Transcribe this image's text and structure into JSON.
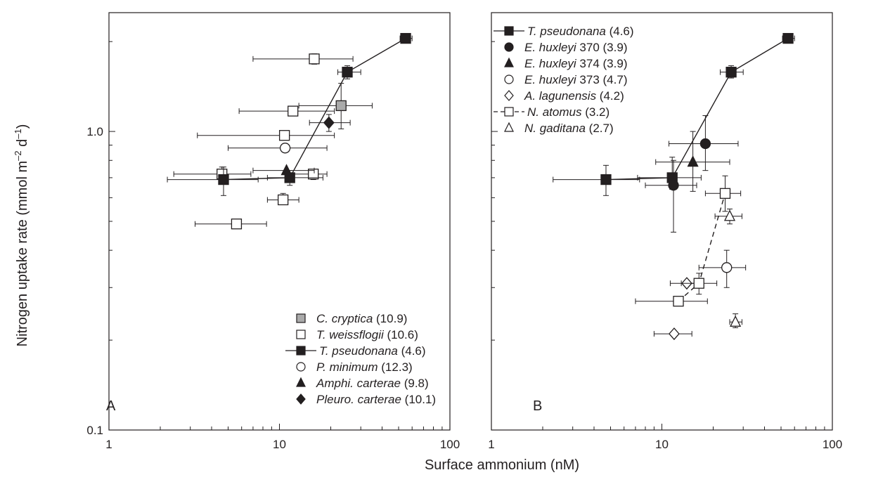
{
  "figure": {
    "ylabel_main": "Nitrogen uptake rate (mmol m",
    "ylabel_sup1": "–2",
    "ylabel_mid": " d",
    "ylabel_sup2": "–1",
    "ylabel_end": ")",
    "xlabel": "Surface ammonium  (nM)"
  },
  "chart_data": [
    {
      "type": "scatter",
      "panel_label": "A",
      "xscale": "log",
      "yscale": "log",
      "xlim": [
        1,
        100
      ],
      "ylim": [
        0.1,
        2.5
      ],
      "xticks": [
        1,
        10,
        100
      ],
      "xtick_labels": [
        "1",
        "10",
        "100"
      ],
      "yticks": [
        0.1,
        1.0
      ],
      "ytick_labels": [
        "0.1",
        "1.0"
      ],
      "legend_position": "bottom-right",
      "series": [
        {
          "name": "C. cryptica",
          "value_label": "(10.9)",
          "marker": "square",
          "fill": "#aaaaaa",
          "line": "none",
          "points": [
            {
              "x": 23,
              "y": 1.22,
              "xerr": [
                13,
                35
              ],
              "yerr": [
                1.02,
                1.45
              ]
            }
          ]
        },
        {
          "name": "T. weissflogii",
          "value_label": "(10.6)",
          "marker": "square",
          "fill": "#ffffff",
          "line": "none",
          "points": [
            {
              "x": 16,
              "y": 1.75,
              "xerr": [
                7,
                27
              ],
              "yerr": [
                1.68,
                1.82
              ]
            },
            {
              "x": 12,
              "y": 1.17,
              "xerr": [
                5.8,
                21
              ]
            },
            {
              "x": 10.7,
              "y": 0.97,
              "xerr": [
                3.3,
                21
              ]
            },
            {
              "x": 4.6,
              "y": 0.72,
              "xerr": [
                2.4,
                6.8
              ],
              "yerr": [
                0.69,
                0.76
              ]
            },
            {
              "x": 15.8,
              "y": 0.72,
              "xerr": [
                11,
                19
              ],
              "yerr": [
                0.69,
                0.74
              ]
            },
            {
              "x": 10.5,
              "y": 0.59,
              "xerr": [
                8.5,
                13
              ],
              "yerr": [
                0.57,
                0.62
              ]
            },
            {
              "x": 5.6,
              "y": 0.49,
              "xerr": [
                3.2,
                8.4
              ]
            }
          ]
        },
        {
          "name": "T. pseudonana",
          "value_label": "(4.6)",
          "marker": "square",
          "fill": "#231f20",
          "line": "solid",
          "points": [
            {
              "x": 4.7,
              "y": 0.69,
              "xerr": [
                2.2,
                7.5
              ],
              "yerr": [
                0.61,
                0.76
              ]
            },
            {
              "x": 11.5,
              "y": 0.7,
              "xerr": [
                8.5,
                18
              ],
              "yerr": [
                0.66,
                0.74
              ]
            },
            {
              "x": 25,
              "y": 1.58,
              "xerr": [
                22,
                30
              ],
              "yerr": [
                1.5,
                1.66
              ]
            },
            {
              "x": 55,
              "y": 2.05,
              "xerr": [
                51,
                60
              ],
              "yerr": [
                1.99,
                2.12
              ]
            }
          ]
        },
        {
          "name": "P. minimum",
          "value_label": "(12.3)",
          "marker": "circle",
          "fill": "#ffffff",
          "line": "none",
          "points": [
            {
              "x": 10.8,
              "y": 0.88,
              "xerr": [
                5,
                19
              ]
            }
          ]
        },
        {
          "name": "Amphi. carterae",
          "value_label": "(9.8)",
          "marker": "triangle",
          "fill": "#231f20",
          "line": "none",
          "points": [
            {
              "x": 11,
              "y": 0.74,
              "xerr": [
                7,
                16
              ]
            }
          ]
        },
        {
          "name": "Pleuro. carterae",
          "value_label": "(10.1)",
          "marker": "diamond",
          "fill": "#231f20",
          "line": "none",
          "points": [
            {
              "x": 19.5,
              "y": 1.07,
              "xerr": [
                15,
                26
              ],
              "yerr": [
                1.0,
                1.14
              ]
            }
          ]
        }
      ]
    },
    {
      "type": "scatter",
      "panel_label": "B",
      "xscale": "log",
      "yscale": "log",
      "xlim": [
        1,
        100
      ],
      "ylim": [
        0.1,
        2.5
      ],
      "xticks": [
        1,
        10,
        100
      ],
      "xtick_labels": [
        "1",
        "10",
        "100"
      ],
      "yticks": [
        0.1,
        1.0
      ],
      "ytick_labels": [
        "",
        ""
      ],
      "legend_position": "top-left",
      "series": [
        {
          "name": "T. pseudonana",
          "value_label": "(4.6)",
          "marker": "square",
          "fill": "#231f20",
          "line": "solid",
          "points": [
            {
              "x": 4.7,
              "y": 0.69,
              "xerr": [
                2.3,
                7.4
              ],
              "yerr": [
                0.61,
                0.77
              ]
            },
            {
              "x": 11.5,
              "y": 0.7,
              "xerr": [
                7.2,
                17
              ],
              "yerr": [
                0.64,
                0.82
              ]
            },
            {
              "x": 25.5,
              "y": 1.58,
              "xerr": [
                22,
                30
              ],
              "yerr": [
                1.51,
                1.66
              ]
            },
            {
              "x": 55,
              "y": 2.05,
              "xerr": [
                51,
                60
              ],
              "yerr": [
                1.99,
                2.12
              ]
            }
          ]
        },
        {
          "name": "E. huxleyi 370",
          "value_label": "(3.9)",
          "marker": "circle",
          "fill": "#231f20",
          "line": "none",
          "points": [
            {
              "x": 18,
              "y": 0.91,
              "xerr": [
                11,
                28
              ],
              "yerr": [
                0.74,
                1.13
              ]
            },
            {
              "x": 11.7,
              "y": 0.66,
              "xerr": [
                8,
                16
              ],
              "yerr": [
                0.46,
                0.8
              ]
            }
          ]
        },
        {
          "name": "E. huxleyi 374",
          "value_label": "(3.9)",
          "marker": "triangle",
          "fill": "#231f20",
          "line": "none",
          "points": [
            {
              "x": 15.2,
              "y": 0.79,
              "xerr": [
                9.2,
                25
              ],
              "yerr": [
                0.63,
                1.0
              ]
            }
          ]
        },
        {
          "name": "E. huxleyi 373",
          "value_label": "(4.7)",
          "marker": "circle",
          "fill": "#ffffff",
          "line": "none",
          "points": [
            {
              "x": 24,
              "y": 0.35,
              "xerr": [
                16.5,
                31
              ],
              "yerr": [
                0.3,
                0.4
              ]
            }
          ]
        },
        {
          "name": "A. lagunensis",
          "value_label": "(4.2)",
          "marker": "diamond",
          "fill": "#ffffff",
          "line": "none",
          "points": [
            {
              "x": 14,
              "y": 0.31,
              "xerr": [
                11.2,
                17
              ]
            },
            {
              "x": 11.8,
              "y": 0.21,
              "xerr": [
                9,
                15
              ]
            }
          ]
        },
        {
          "name": "N. atomus",
          "value_label": "(3.2)",
          "marker": "square",
          "fill": "#ffffff",
          "line": "dashed",
          "points": [
            {
              "x": 12.5,
              "y": 0.27,
              "xerr": [
                7,
                18.5
              ]
            },
            {
              "x": 16.5,
              "y": 0.31,
              "xerr": [
                13,
                21
              ],
              "yerr": [
                0.285,
                0.335
              ]
            },
            {
              "x": 23.5,
              "y": 0.62,
              "xerr": [
                18,
                29
              ],
              "yerr": [
                0.54,
                0.71
              ]
            }
          ]
        },
        {
          "name": "N. gaditana",
          "value_label": "(2.7)",
          "marker": "triangle",
          "fill": "#ffffff",
          "line": "none",
          "points": [
            {
              "x": 25,
              "y": 0.52,
              "xerr": [
                20.5,
                29.5
              ],
              "yerr": [
                0.49,
                0.55
              ]
            },
            {
              "x": 27,
              "y": 0.23,
              "xerr": [
                25,
                29.5
              ],
              "yerr": [
                0.22,
                0.245
              ]
            }
          ]
        }
      ]
    }
  ]
}
